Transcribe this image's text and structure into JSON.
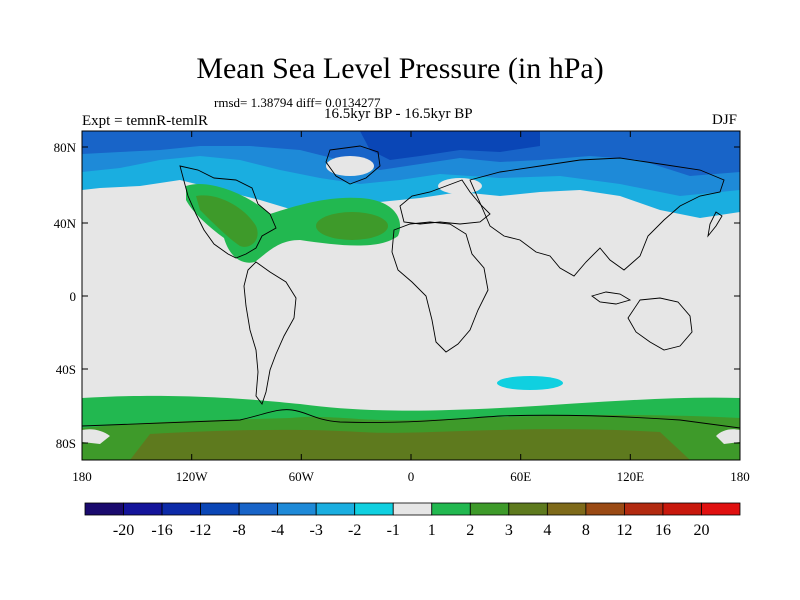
{
  "header": {
    "title": "Mean Sea Level Pressure (in hPa)",
    "stats": "rmsd= 1.38794 diff= 0.0134277",
    "period": "16.5kyr BP - 16.5kyr BP",
    "experiment": "Expt = temnR-temlR",
    "season": "DJF"
  },
  "axes": {
    "lat_ticks": [
      "80N",
      "40N",
      "0",
      "40S",
      "80S"
    ],
    "lon_ticks": [
      "180",
      "120W",
      "60W",
      "0",
      "60E",
      "120E",
      "180"
    ]
  },
  "legend": {
    "labels": [
      "-20",
      "-16",
      "-12",
      "-8",
      "-4",
      "-3",
      "-2",
      "-1",
      "1",
      "2",
      "3",
      "4",
      "8",
      "12",
      "16",
      "20"
    ],
    "colors": [
      "#1a0a6e",
      "#14149a",
      "#0c2aa8",
      "#0a46b6",
      "#1864c8",
      "#1e8ad8",
      "#1aaee0",
      "#10d0e0",
      "#e6e6e6",
      "#22b850",
      "#3e9a2a",
      "#5e7a1e",
      "#7e6a1a",
      "#9a4a14",
      "#b22a10",
      "#c8180c",
      "#e01010"
    ]
  },
  "colors": {
    "background": "#e6e6e6",
    "coast": "#000000"
  }
}
